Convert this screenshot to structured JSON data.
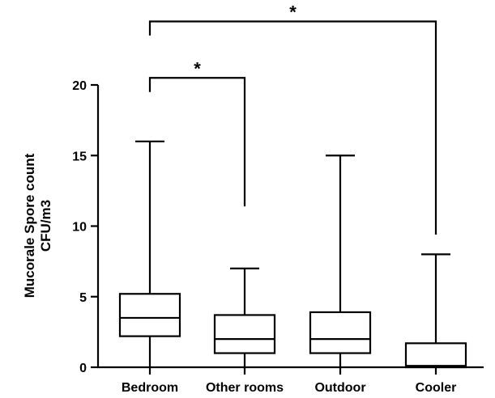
{
  "chart_data": {
    "type": "box",
    "title": "",
    "xlabel": "",
    "ylabel_line1": "Mucorale Spore count",
    "ylabel_line2": "CFU/m3",
    "ylim": [
      0,
      20
    ],
    "yticks": [
      0,
      5,
      10,
      15,
      20
    ],
    "ytick_labels": [
      "0",
      "5",
      "10",
      "15",
      "20"
    ],
    "grid": false,
    "categories": [
      "Bedroom",
      "Other rooms",
      "Outdoor",
      "Cooler"
    ],
    "boxes": [
      {
        "category": "Bedroom",
        "min": 0,
        "q1": 2.2,
        "median": 3.5,
        "q3": 5.2,
        "max": 16
      },
      {
        "category": "Other rooms",
        "min": 0,
        "q1": 1.0,
        "median": 2.0,
        "q3": 3.7,
        "max": 7
      },
      {
        "category": "Outdoor",
        "min": 0,
        "q1": 1.0,
        "median": 2.0,
        "q3": 3.9,
        "max": 15
      },
      {
        "category": "Cooler",
        "min": 0,
        "q1": 0,
        "median": 0.1,
        "q3": 1.7,
        "max": 8
      }
    ],
    "significance": [
      {
        "from": "Bedroom",
        "to": "Other rooms",
        "label": "*",
        "bar_y": 20.5,
        "from_end": 19.5,
        "to_end": 11.4
      },
      {
        "from": "Bedroom",
        "to": "Cooler",
        "label": "*",
        "bar_y": 24.5,
        "from_end": 23.5,
        "to_end": 9.4
      }
    ]
  }
}
